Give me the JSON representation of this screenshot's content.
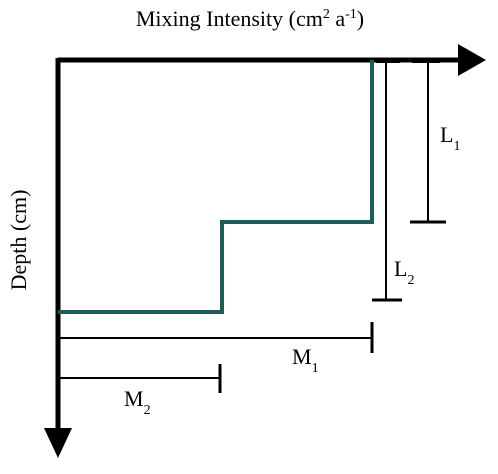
{
  "x_axis": {
    "label": {
      "main": "Mixing Intensity (cm",
      "sup1": "2",
      "mid": " a",
      "sup2": "-1",
      "end": ")"
    }
  },
  "y_axis": {
    "label": "Depth (cm)"
  },
  "dimensions": {
    "L1": {
      "letter": "L",
      "sub": "1"
    },
    "L2": {
      "letter": "L",
      "sub": "2"
    },
    "M1": {
      "letter": "M",
      "sub": "1"
    },
    "M2": {
      "letter": "M",
      "sub": "2"
    }
  }
}
